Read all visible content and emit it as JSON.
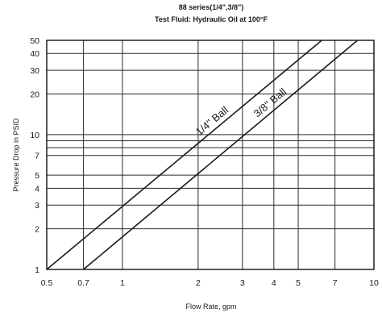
{
  "chart_data": {
    "type": "line",
    "title": "88 series(1/4\",3/8\")",
    "subtitle": "Test Fluid: Hydraulic Oil at 100°F",
    "xlabel": "Flow Rate, gpm",
    "ylabel": "Pressure Drop in PSID",
    "xscale": "log",
    "yscale": "log",
    "xlim": [
      0.5,
      10
    ],
    "ylim": [
      1,
      50
    ],
    "grid": true,
    "legend": "none",
    "xticks": [
      0.5,
      0.7,
      1,
      2,
      3,
      4,
      5,
      7,
      10
    ],
    "xtick_labels": [
      "0.5",
      "0.7",
      "1",
      "2",
      "3",
      "4",
      "5",
      "7",
      "10"
    ],
    "yticks": [
      1,
      2,
      3,
      4,
      5,
      7,
      10,
      20,
      30,
      40,
      50
    ],
    "ytick_labels": [
      "1",
      "2",
      "3",
      "4",
      "5",
      "7",
      "10",
      "20",
      "30",
      "40",
      "50"
    ],
    "xgrid": [
      0.5,
      0.7,
      1,
      2,
      3,
      4,
      5,
      7,
      10
    ],
    "ygrid": [
      1,
      2,
      3,
      4,
      5,
      7,
      8,
      9,
      10,
      20,
      30,
      40,
      50
    ],
    "series": [
      {
        "name": "1/4\" Ball",
        "x": [
          0.5,
          6.2
        ],
        "y": [
          1,
          50
        ]
      },
      {
        "name": "3/8\" Ball",
        "x": [
          0.7,
          8.6
        ],
        "y": [
          1,
          50
        ]
      }
    ],
    "colors": {
      "line": "#1a1a1a",
      "grid": "#2a2a2a"
    }
  }
}
